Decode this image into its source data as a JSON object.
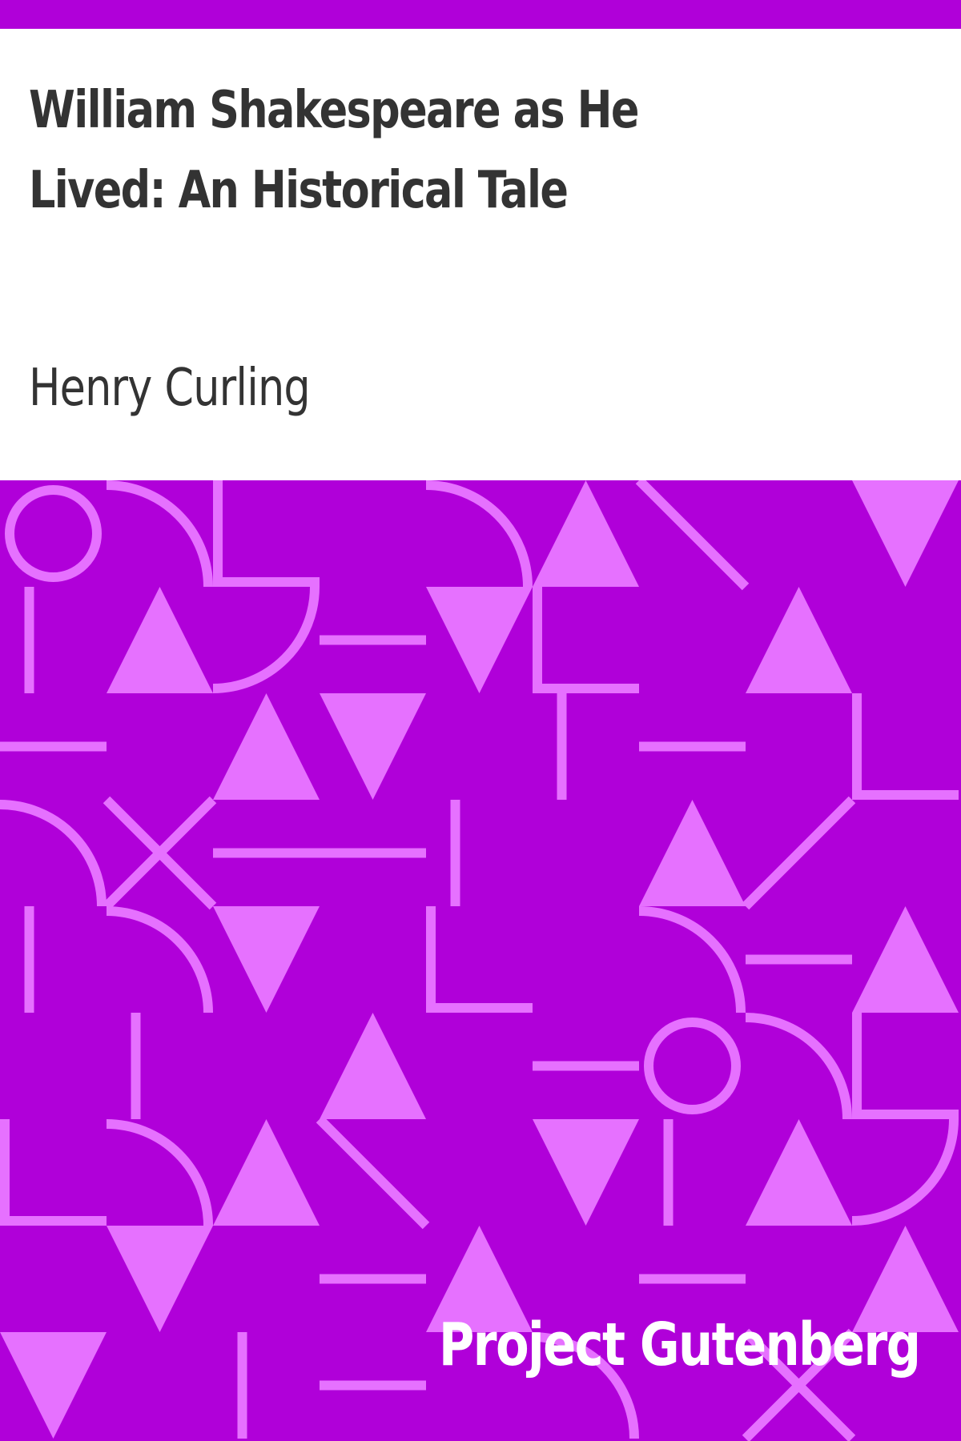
{
  "book": {
    "title": "William Shakespeare as He Lived: An Historical Tale",
    "author": "Henry Curling",
    "publisher": "Project Gutenberg"
  },
  "colors": {
    "background": "#B000D9",
    "pattern": "#E671FF",
    "text_dark": "#333333",
    "text_light": "#FFFFFF",
    "title_area": "#FFFFFF"
  }
}
